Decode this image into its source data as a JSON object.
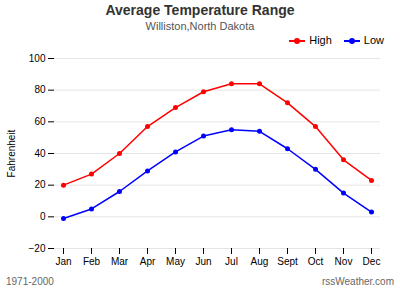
{
  "chart_data": {
    "type": "line",
    "title": "Average Temperature Range",
    "subtitle": "Williston,North Dakota",
    "ylabel": "Fahrenheit",
    "categories": [
      "Jan",
      "Feb",
      "Mar",
      "Apr",
      "May",
      "Jun",
      "Jul",
      "Aug",
      "Sept",
      "Oct",
      "Nov",
      "Dec"
    ],
    "series": [
      {
        "name": "High",
        "color": "#ff0000",
        "values": [
          20,
          27,
          40,
          57,
          69,
          79,
          84,
          84,
          72,
          57,
          36,
          23
        ]
      },
      {
        "name": "Low",
        "color": "#0000ff",
        "values": [
          -1,
          5,
          16,
          29,
          41,
          51,
          55,
          54,
          43,
          30,
          15,
          3
        ]
      }
    ],
    "ylim": [
      -20,
      100
    ],
    "yticks": [
      -20,
      0,
      20,
      40,
      60,
      80,
      100
    ],
    "grid": true,
    "legend": "upper right",
    "marker": "circle",
    "annotations": [
      "1971-2000",
      "rssWeather.com"
    ]
  }
}
